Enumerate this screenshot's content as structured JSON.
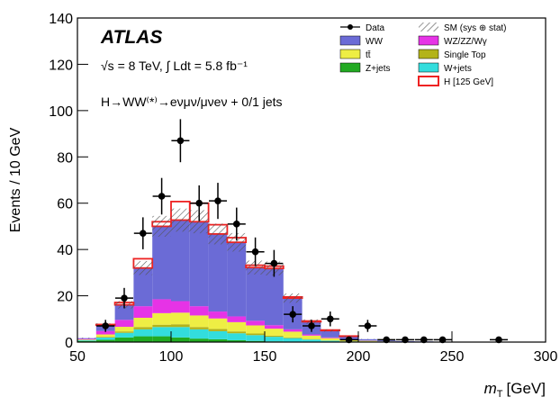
{
  "chart_data": {
    "type": "stacked_histogram",
    "annotations": {
      "experiment": "ATLAS",
      "energy": "√s = 8 TeV, ∫ Ldt = 5.8 fb⁻¹",
      "channel": "H→WW⁽*⁾→eνμν/μνeν + 0/1 jets"
    },
    "y_label": "Events / 10 GeV",
    "x_label_symbol": "m",
    "x_label_subscript": "T",
    "x_label_unit": "[GeV]",
    "bins": [
      50,
      60,
      70,
      80,
      90,
      100,
      110,
      120,
      130,
      140,
      150,
      160,
      170,
      180,
      190,
      200,
      210,
      220,
      230,
      240,
      250,
      260,
      270,
      280,
      290,
      300
    ],
    "series": [
      {
        "name": "Z+jets",
        "color": "#22aa22",
        "values": [
          0.5,
          1,
          2,
          2.5,
          2.5,
          2,
          1.5,
          1.2,
          0.8,
          0.5,
          0.3,
          0.2,
          0.1,
          0.1,
          0,
          0,
          0,
          0,
          0,
          0,
          0,
          0,
          0,
          0,
          0
        ]
      },
      {
        "name": "W+jets",
        "color": "#33dddd",
        "values": [
          0.3,
          1,
          2,
          3,
          4,
          4.5,
          4,
          3.5,
          3,
          2.5,
          2,
          1.5,
          1,
          0.5,
          0.3,
          0.2,
          0.1,
          0,
          0,
          0,
          0,
          0,
          0,
          0,
          0
        ]
      },
      {
        "name": "Single Top",
        "color": "#b3b31a",
        "values": [
          0.1,
          0.3,
          0.6,
          1,
          1,
          1.2,
          1,
          1,
          0.8,
          0.7,
          0.5,
          0.3,
          0.2,
          0.1,
          0.1,
          0.05,
          0,
          0,
          0,
          0,
          0,
          0,
          0,
          0,
          0
        ]
      },
      {
        "name": "tt̄",
        "color": "#eeee44",
        "values": [
          0.2,
          1,
          2,
          4,
          5,
          5,
          5,
          4.5,
          4,
          3.5,
          3,
          2.5,
          1.5,
          1,
          0.6,
          0.3,
          0.2,
          0.1,
          0,
          0,
          0,
          0,
          0,
          0,
          0
        ]
      },
      {
        "name": "WZ/ZZ/Wγ",
        "color": "#e633e6",
        "values": [
          0.3,
          1.5,
          3,
          5,
          6,
          5,
          4,
          3,
          2.5,
          2,
          1.5,
          1,
          0.5,
          0.3,
          0.2,
          0.1,
          0,
          0,
          0,
          0,
          0,
          0,
          0,
          0,
          0
        ]
      },
      {
        "name": "WW",
        "color": "#6b6bd6",
        "values": [
          0.3,
          2.5,
          6.5,
          16.5,
          31.5,
          35,
          36.5,
          33.5,
          32,
          23,
          24.5,
          13.5,
          5.5,
          3,
          1.3,
          0.6,
          0.4,
          0.3,
          0.3,
          0.2,
          0.1,
          0.1,
          0.1,
          0.05,
          0.05
        ]
      },
      {
        "name": "H [125 GeV]",
        "color": "#ee2222",
        "outline": true,
        "values": [
          0,
          0.3,
          1,
          4,
          2,
          8,
          8,
          4,
          2,
          1,
          1,
          0.5,
          0.3,
          0.2,
          0.1,
          0,
          0,
          0,
          0,
          0,
          0,
          0,
          0,
          0,
          0
        ]
      }
    ],
    "uncertainty": {
      "name": "SM (sys ⊕ stat)",
      "values": [
        0.2,
        0.8,
        1.6,
        3,
        4.5,
        5,
        5,
        4.5,
        4,
        3,
        3,
        2,
        1,
        0.5,
        0.3,
        0.1,
        0,
        0,
        0,
        0,
        0,
        0,
        0,
        0,
        0
      ]
    },
    "data": {
      "name": "Data",
      "color": "#000000",
      "x": [
        65,
        75,
        85,
        95,
        105,
        115,
        125,
        135,
        145,
        155,
        165,
        175,
        185,
        195,
        205,
        215,
        225,
        235,
        245,
        275
      ],
      "values": [
        7,
        19,
        47,
        63,
        87,
        60,
        61,
        51,
        39,
        34,
        12,
        7,
        10,
        1,
        7,
        1,
        1,
        1,
        1,
        1
      ],
      "errors": [
        2.6,
        4.4,
        6.9,
        7.9,
        9.3,
        7.7,
        7.8,
        7.1,
        6.2,
        5.8,
        3.5,
        2.6,
        3.2,
        1,
        2.6,
        1,
        1,
        1,
        1,
        1
      ]
    },
    "xlim": [
      50,
      300
    ],
    "xticks": [
      50,
      100,
      150,
      200,
      250,
      300
    ],
    "ylim": [
      0,
      140
    ],
    "yticks": [
      0,
      20,
      40,
      60,
      80,
      100,
      120,
      140
    ]
  }
}
